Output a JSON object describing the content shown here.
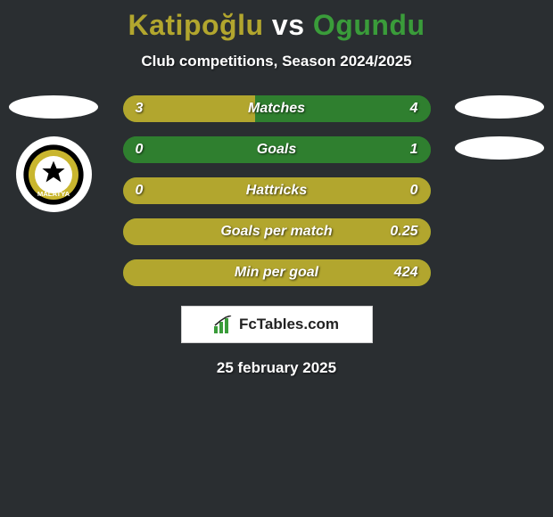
{
  "title": {
    "player1": "Katipoğlu",
    "vs": "vs",
    "player2": "Ogundu",
    "color1": "#b2a62e",
    "color_vs": "#ffffff",
    "color2": "#3a9c3a"
  },
  "subtitle": "Club competitions, Season 2024/2025",
  "bar_colors": {
    "left": "#b2a62e",
    "right": "#2f7f2f",
    "container": "#2f7f2f"
  },
  "rows": [
    {
      "label": "Matches",
      "left_val": "3",
      "right_val": "4",
      "left_pct": 43,
      "right_pct": 57
    },
    {
      "label": "Goals",
      "left_val": "0",
      "right_val": "1",
      "left_pct": 0,
      "right_pct": 100
    },
    {
      "label": "Hattricks",
      "left_val": "0",
      "right_val": "0",
      "left_pct": 100,
      "right_pct": 0
    },
    {
      "label": "Goals per match",
      "left_val": "",
      "right_val": "0.25",
      "left_pct": 100,
      "right_pct": 0
    },
    {
      "label": "Min per goal",
      "left_val": "",
      "right_val": "424",
      "left_pct": 100,
      "right_pct": 0
    }
  ],
  "footer": {
    "brand": "FcTables.com",
    "date": "25 february 2025"
  },
  "badge": {
    "ring_outer": "#000000",
    "ring_inner": "#c9b62e",
    "text": "MALATYA"
  }
}
